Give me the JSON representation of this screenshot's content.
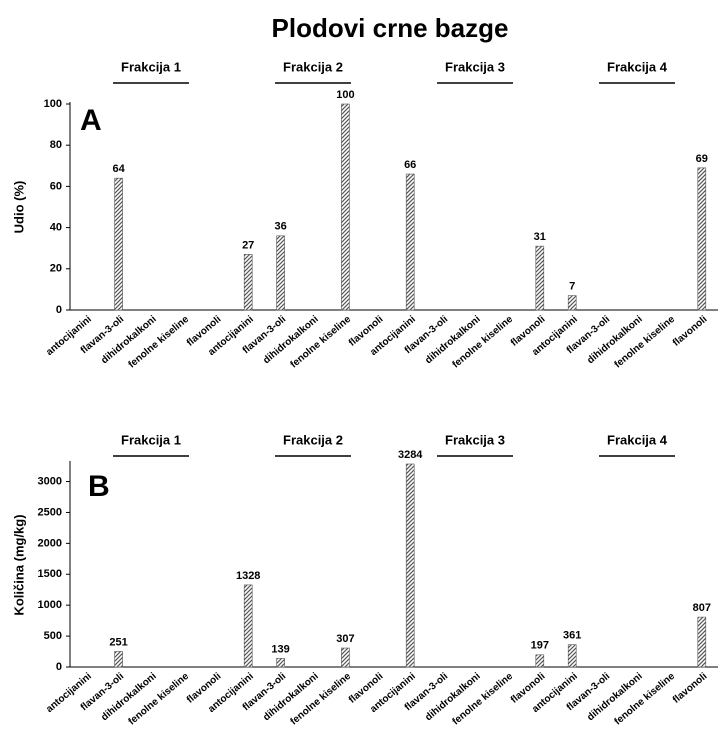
{
  "title": "Plodovi crne bazge",
  "chart_data": [
    {
      "type": "bar",
      "panel": "A",
      "ylabel": "Udio (%)",
      "groups": [
        "Frakcija 1",
        "Frakcija 2",
        "Frakcija 3",
        "Frakcija 4"
      ],
      "categories": [
        "antocijanini",
        "flavan-3-oli",
        "dihidrokalkoni",
        "fenolne kiseline",
        "flavonoli",
        "antocijanini",
        "flavan-3-oli",
        "dihidrokalkoni",
        "fenolne kiseline",
        "flavonoli",
        "antocijanini",
        "flavan-3-oli",
        "dihidrokalkoni",
        "fenolne kiseline",
        "flavonoli",
        "antocijanini",
        "flavan-3-oli",
        "dihidrokalkoni",
        "fenolne kiseline",
        "flavonoli"
      ],
      "values": [
        null,
        64,
        null,
        null,
        null,
        27,
        36,
        null,
        100,
        null,
        66,
        null,
        null,
        null,
        31,
        7,
        null,
        null,
        null,
        69
      ],
      "color": "#555555",
      "ylim": [
        0,
        100
      ],
      "yticks": [
        0,
        20,
        40,
        60,
        80,
        100
      ]
    },
    {
      "type": "bar",
      "panel": "B",
      "ylabel": "Količina (mg/kg)",
      "groups": [
        "Frakcija 1",
        "Frakcija 2",
        "Frakcija 3",
        "Frakcija 4"
      ],
      "categories": [
        "antocijanini",
        "flavan-3-oli",
        "dihidrokalkoni",
        "fenolne kiseline",
        "flavonoli",
        "antocijanini",
        "flavan-3-oli",
        "dihidrokalkoni",
        "fenolne kiseline",
        "flavonoli",
        "antocijanini",
        "flavan-3-oli",
        "dihidrokalkoni",
        "fenolne kiseline",
        "flavonoli",
        "antocijanini",
        "flavan-3-oli",
        "dihidrokalkoni",
        "fenolne kiseline",
        "flavonoli"
      ],
      "values": [
        null,
        251,
        null,
        null,
        null,
        1328,
        139,
        null,
        307,
        null,
        3284,
        null,
        null,
        null,
        197,
        361,
        null,
        null,
        null,
        807
      ],
      "color": "#555555",
      "ylim": [
        0,
        3300
      ],
      "yticks": [
        0,
        500,
        1000,
        1500,
        2000,
        2500,
        3000
      ]
    }
  ]
}
